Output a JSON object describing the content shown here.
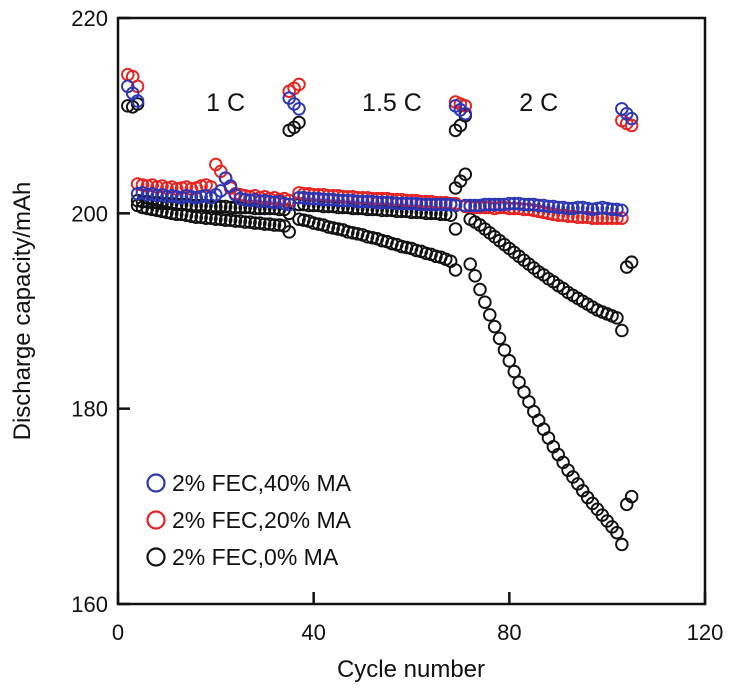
{
  "chart_data": {
    "type": "scatter",
    "title": "",
    "xlabel": "Cycle number",
    "ylabel": "Discharge capacity/mAh",
    "xlim": [
      0,
      120
    ],
    "ylim": [
      160,
      220
    ],
    "xticks": [
      0,
      40,
      80,
      120
    ],
    "yticks": [
      160,
      180,
      200,
      220
    ],
    "xtick_labels": [
      "0",
      "40",
      "80",
      "120"
    ],
    "ytick_labels": [
      "160",
      "180",
      "200",
      "220"
    ],
    "grid": false,
    "legend_placement": "bottom-left",
    "annotations": [
      {
        "text": "1 C",
        "x": 22,
        "y": 210.5
      },
      {
        "text": "1.5 C",
        "x": 56,
        "y": 210.5
      },
      {
        "text": "2 C",
        "x": 86,
        "y": 210.5
      }
    ],
    "series": [
      {
        "name": "2% FEC,0% MA",
        "color": "#111111",
        "segments": [
          {
            "x0": 2,
            "y": [
              211.0,
              210.9,
              211.2
            ]
          },
          {
            "x0": 4,
            "y": [
              200.8,
              200.6,
              200.5,
              200.4,
              200.3,
              200.2,
              200.1,
              200.0,
              199.9,
              199.9,
              199.8,
              199.7,
              199.6,
              199.6,
              199.5,
              199.5,
              199.4,
              199.4,
              199.3,
              199.3,
              199.2,
              199.2,
              199.1,
              199.1,
              199.0,
              199.0,
              198.9,
              198.9,
              198.8,
              198.8,
              198.7,
              198.1
            ]
          },
          {
            "x0": 4,
            "y": [
              201.3,
              201.2,
              201.2,
              201.1,
              201.1,
              201.0,
              201.0,
              201.0,
              200.9,
              200.9,
              200.9,
              200.8,
              200.8,
              200.8,
              200.8,
              200.7,
              200.7,
              200.7,
              200.7,
              200.6,
              200.6,
              200.6,
              200.6,
              200.6,
              200.5,
              200.5,
              200.5,
              200.5,
              200.5,
              200.4,
              200.4,
              200.0
            ]
          },
          {
            "x0": 35,
            "y": [
              208.5,
              208.8,
              209.3
            ]
          },
          {
            "x0": 37,
            "y": [
              199.4,
              199.3,
              199.2,
              199.0,
              198.9,
              198.8,
              198.6,
              198.5,
              198.4,
              198.3,
              198.1,
              198.0,
              197.9,
              197.8,
              197.6,
              197.5,
              197.4,
              197.2,
              197.1,
              196.9,
              196.8,
              196.6,
              196.5,
              196.4,
              196.2,
              196.1,
              195.9,
              195.8,
              195.6,
              195.5,
              195.3,
              195.1,
              194.2
            ]
          },
          {
            "x0": 37,
            "y": [
              200.9,
              200.9,
              200.8,
              200.8,
              200.8,
              200.7,
              200.7,
              200.7,
              200.6,
              200.6,
              200.6,
              200.5,
              200.5,
              200.5,
              200.4,
              200.4,
              200.4,
              200.3,
              200.3,
              200.3,
              200.2,
              200.2,
              200.2,
              200.1,
              200.1,
              200.1,
              200.0,
              200.0,
              200.0,
              199.9,
              199.9,
              199.8,
              198.4
            ]
          },
          {
            "x0": 69,
            "y": [
              202.6,
              203.3,
              204.0
            ]
          },
          {
            "x0": 69,
            "y": [
              208.5,
              209.0,
              210.0
            ]
          },
          {
            "x0": 72,
            "y": [
              199.4,
              199.1,
              198.8,
              198.4,
              198.0,
              197.6,
              197.2,
              196.8,
              196.4,
              196.0,
              195.6,
              195.2,
              194.8,
              194.4,
              194.0,
              193.7,
              193.3,
              193.0,
              192.6,
              192.3,
              191.9,
              191.6,
              191.3,
              191.0,
              190.7,
              190.4,
              190.1,
              189.9,
              189.7,
              189.5,
              189.3,
              188.0
            ]
          },
          {
            "x0": 72,
            "y": [
              194.8,
              193.6,
              192.2,
              190.9,
              189.6,
              188.4,
              187.2,
              186.0,
              184.9,
              183.8,
              182.7,
              181.7,
              180.7,
              179.7,
              178.8,
              177.9,
              177.0,
              176.1,
              175.3,
              174.5,
              173.7,
              173.0,
              172.3,
              171.6,
              170.9,
              170.3,
              169.7,
              169.1,
              168.5,
              167.9,
              167.3,
              166.1
            ]
          },
          {
            "x0": 104,
            "y": [
              194.5,
              195.0
            ]
          },
          {
            "x0": 104,
            "y": [
              170.2,
              171.0
            ]
          }
        ]
      },
      {
        "name": "2% FEC,20% MA",
        "color": "#e8221f",
        "segments": [
          {
            "x0": 2,
            "y": [
              214.2,
              214.0,
              213.0
            ]
          },
          {
            "x0": 4,
            "y": [
              203.0,
              202.9,
              202.8,
              202.9,
              202.7,
              202.8,
              202.6,
              202.7,
              202.5,
              202.6,
              202.7,
              202.5,
              202.6,
              202.8,
              202.9,
              202.7,
              205.0,
              204.3,
              203.6,
              202.6,
              202.0,
              201.9,
              201.8,
              201.7,
              201.8,
              201.6,
              201.7,
              201.5,
              201.6,
              201.4,
              201.5,
              201.3
            ]
          },
          {
            "x0": 35,
            "y": [
              212.5,
              212.8,
              213.2
            ]
          },
          {
            "x0": 37,
            "y": [
              202.1,
              202.0,
              202.0,
              201.9,
              201.9,
              201.9,
              201.8,
              201.8,
              201.8,
              201.7,
              201.7,
              201.7,
              201.6,
              201.6,
              201.6,
              201.5,
              201.5,
              201.5,
              201.5,
              201.4,
              201.4,
              201.4,
              201.3,
              201.3,
              201.3,
              201.2,
              201.2,
              201.2,
              201.1,
              201.1,
              201.1,
              201.0,
              201.0
            ]
          },
          {
            "x0": 69,
            "y": [
              211.4,
              211.2,
              211.0
            ]
          },
          {
            "x0": 71,
            "y": [
              200.7,
              200.7,
              200.6,
              200.6,
              200.6,
              200.6,
              200.5,
              200.6,
              200.6,
              200.5,
              200.5,
              200.5,
              200.4,
              200.4,
              200.3,
              200.2,
              200.1,
              200.0,
              199.9,
              199.8,
              199.8,
              199.7,
              199.7,
              199.6,
              199.6,
              199.6,
              199.5,
              199.5,
              199.5,
              199.5,
              199.5,
              199.5,
              199.5
            ]
          },
          {
            "x0": 103,
            "y": [
              209.5,
              209.2,
              209.0
            ]
          }
        ]
      },
      {
        "name": "2% FEC,40% MA",
        "color": "#2b35b5",
        "segments": [
          {
            "x0": 2,
            "y": [
              213.0,
              212.3,
              211.5
            ]
          },
          {
            "x0": 4,
            "y": [
              202.0,
              202.1,
              201.9,
              202.0,
              201.8,
              201.9,
              201.7,
              201.8,
              201.7,
              201.6,
              201.8,
              201.7,
              201.6,
              201.7,
              201.8,
              201.6,
              201.9,
              202.3,
              203.6,
              202.8,
              201.9,
              201.5,
              201.4,
              201.3,
              201.4,
              201.2,
              201.3,
              201.2,
              201.1,
              201.2,
              201.0,
              200.9
            ]
          },
          {
            "x0": 35,
            "y": [
              211.8,
              211.2,
              210.7
            ]
          },
          {
            "x0": 37,
            "y": [
              201.6,
              201.6,
              201.5,
              201.5,
              201.5,
              201.4,
              201.4,
              201.4,
              201.3,
              201.3,
              201.3,
              201.3,
              201.2,
              201.2,
              201.2,
              201.2,
              201.1,
              201.1,
              201.1,
              201.1,
              201.0,
              201.0,
              201.0,
              201.0,
              201.0,
              200.9,
              200.9,
              200.9,
              200.9,
              200.9,
              200.9,
              200.9,
              200.8
            ]
          },
          {
            "x0": 69,
            "y": [
              211.0,
              210.6,
              210.2
            ]
          },
          {
            "x0": 71,
            "y": [
              200.8,
              200.8,
              200.8,
              200.8,
              200.9,
              200.9,
              200.9,
              200.9,
              200.9,
              201.0,
              201.0,
              201.0,
              200.9,
              200.9,
              200.9,
              200.8,
              200.8,
              200.7,
              200.7,
              200.6,
              200.6,
              200.5,
              200.5,
              200.6,
              200.6,
              200.5,
              200.4,
              200.5,
              200.6,
              200.5,
              200.4,
              200.4,
              200.3
            ]
          },
          {
            "x0": 103,
            "y": [
              210.7,
              210.2,
              209.7
            ]
          }
        ]
      }
    ],
    "legend": [
      {
        "label": "2% FEC,40% MA",
        "color": "#2b35b5"
      },
      {
        "label": "2% FEC,20% MA",
        "color": "#e8221f"
      },
      {
        "label": "2% FEC,0% MA",
        "color": "#111111"
      }
    ]
  }
}
